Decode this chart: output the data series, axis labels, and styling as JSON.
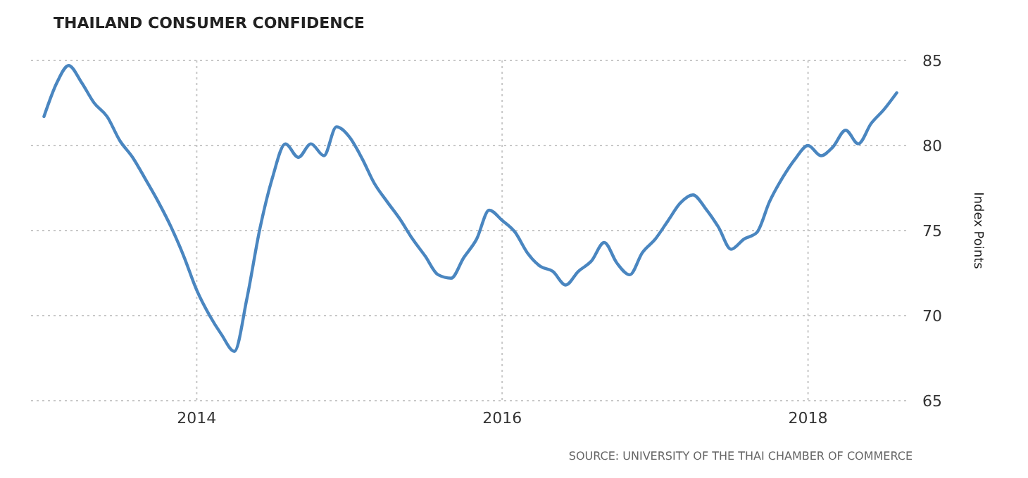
{
  "chart_data": {
    "type": "line",
    "title": "THAILAND CONSUMER CONFIDENCE",
    "ylabel": "Index Points",
    "annotations": [
      "SOURCE: UNIVERSITY OF THE THAI CHAMBER OF COMMERCE"
    ],
    "x": [
      "2013-01",
      "2013-02",
      "2013-03",
      "2013-04",
      "2013-05",
      "2013-06",
      "2013-07",
      "2013-08",
      "2013-09",
      "2013-10",
      "2013-11",
      "2013-12",
      "2014-01",
      "2014-02",
      "2014-03",
      "2014-04",
      "2014-05",
      "2014-06",
      "2014-07",
      "2014-08",
      "2014-09",
      "2014-10",
      "2014-11",
      "2014-12",
      "2015-01",
      "2015-02",
      "2015-03",
      "2015-04",
      "2015-05",
      "2015-06",
      "2015-07",
      "2015-08",
      "2015-09",
      "2015-10",
      "2015-11",
      "2015-12",
      "2016-01",
      "2016-02",
      "2016-03",
      "2016-04",
      "2016-05",
      "2016-06",
      "2016-07",
      "2016-08",
      "2016-09",
      "2016-10",
      "2016-11",
      "2016-12",
      "2017-01",
      "2017-02",
      "2017-03",
      "2017-04",
      "2017-05",
      "2017-06",
      "2017-07",
      "2017-08",
      "2017-09",
      "2017-10",
      "2017-11",
      "2017-12",
      "2018-01",
      "2018-02",
      "2018-03",
      "2018-04",
      "2018-05",
      "2018-06",
      "2018-07",
      "2018-08"
    ],
    "series": [
      {
        "color": "#4a86c0",
        "values": [
          81.7,
          83.7,
          84.7,
          83.7,
          82.5,
          81.7,
          80.3,
          79.3,
          78.0,
          76.7,
          75.2,
          73.5,
          71.5,
          70.0,
          68.9,
          67.9,
          71.0,
          75.1,
          78.1,
          80.1,
          79.3,
          80.1,
          79.4,
          81.1,
          80.5,
          79.2,
          77.8,
          76.7,
          75.7,
          74.5,
          73.5,
          72.4,
          72.2,
          73.4,
          74.5,
          76.2,
          75.6,
          74.9,
          73.7,
          72.9,
          72.6,
          71.8,
          72.6,
          73.2,
          74.3,
          73.1,
          72.4,
          73.7,
          74.5,
          75.6,
          76.6,
          77.1,
          76.3,
          75.2,
          73.9,
          74.5,
          74.9,
          76.7,
          78.1,
          79.2,
          80.0,
          79.4,
          79.9,
          80.9,
          80.1,
          81.3,
          82.1,
          83.1
        ]
      }
    ],
    "xlim": [
      "2012-12-01",
      "2018-09-01"
    ],
    "xticks": [
      "2014",
      "2016",
      "2018"
    ],
    "ylim": [
      65,
      85
    ],
    "yticks": [
      65,
      70,
      75,
      80,
      85
    ],
    "grid": true
  }
}
